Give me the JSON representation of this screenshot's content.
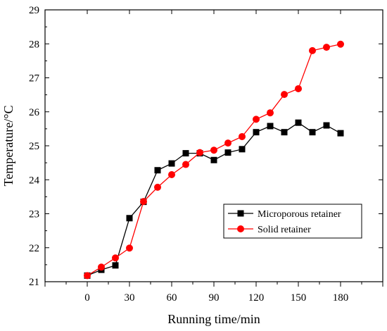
{
  "chart_data": {
    "type": "line",
    "title": "",
    "xlabel": "Running time/min",
    "ylabel": "Temperature/°C",
    "xlim": [
      -30,
      210
    ],
    "ylim": [
      21,
      29
    ],
    "xticks": [
      0,
      30,
      60,
      90,
      120,
      150,
      180
    ],
    "yticks": [
      21,
      22,
      23,
      24,
      25,
      26,
      27,
      28,
      29
    ],
    "x": [
      0,
      10,
      20,
      30,
      40,
      50,
      60,
      70,
      80,
      90,
      100,
      110,
      120,
      130,
      140,
      150,
      160,
      170,
      180
    ],
    "grid": false,
    "legend_position": "lower-right",
    "series": [
      {
        "name": "Microporous retainer",
        "color": "#000000",
        "marker": "square",
        "values": [
          21.18,
          21.35,
          21.48,
          22.87,
          23.35,
          24.28,
          24.48,
          24.78,
          24.78,
          24.58,
          24.8,
          24.9,
          25.4,
          25.58,
          25.4,
          25.68,
          25.4,
          25.6,
          25.37
        ]
      },
      {
        "name": "Solid retainer",
        "color": "#ff0000",
        "marker": "circle",
        "values": [
          21.18,
          21.43,
          21.7,
          21.99,
          23.36,
          23.78,
          24.15,
          24.45,
          24.8,
          24.87,
          25.08,
          25.27,
          25.78,
          25.97,
          26.51,
          26.68,
          27.8,
          27.9,
          27.99
        ]
      }
    ]
  }
}
